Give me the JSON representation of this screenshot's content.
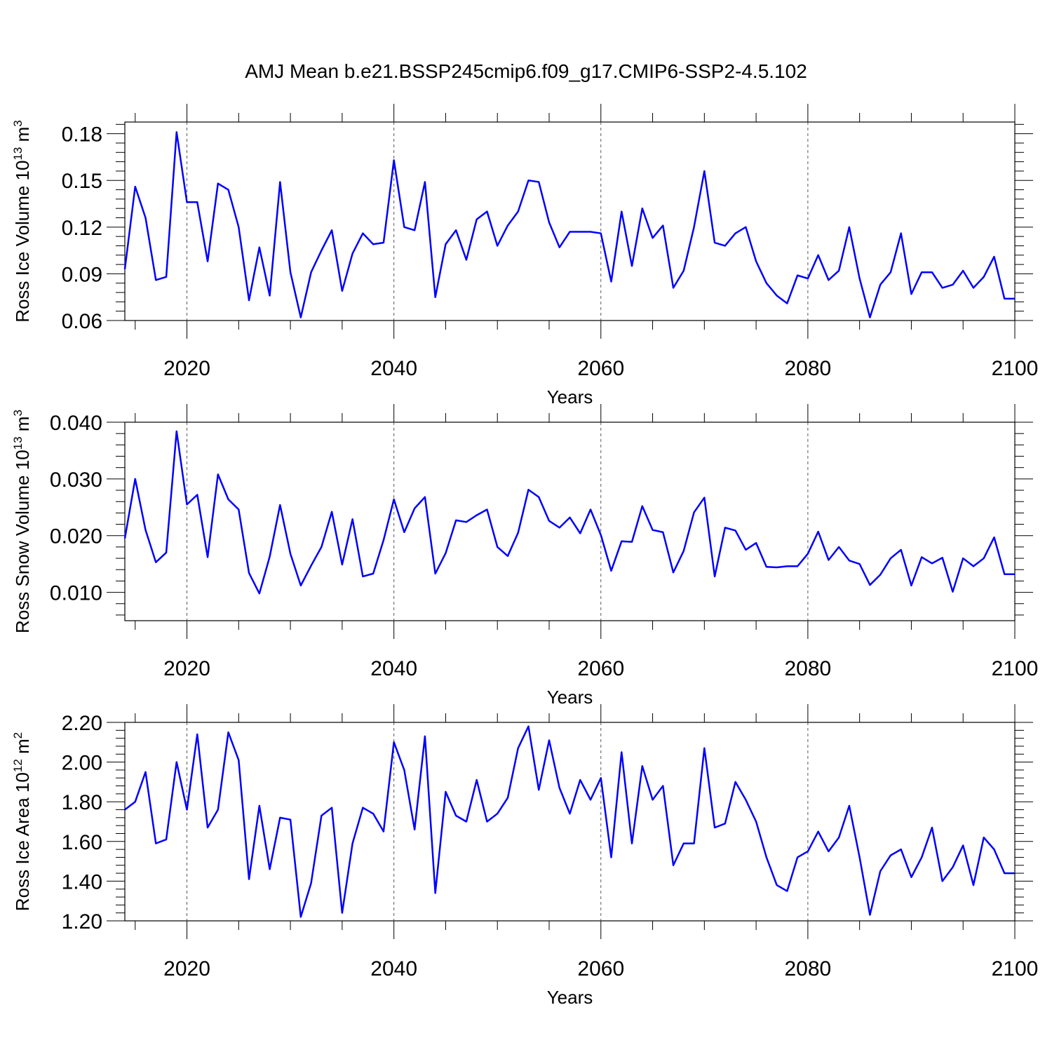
{
  "title": "AMJ Mean b.e21.BSSP245cmip6.f09_g17.CMIP6-SSP2-4.5.102",
  "chart_data": [
    {
      "type": "line",
      "ylabel": "Ross Ice Volume 10",
      "ylabel_exp": "13",
      "ylabel_unit": " m",
      "ylabel_unit_exp": "3",
      "xlabel": "Years",
      "xlim": [
        2014,
        2100
      ],
      "ylim": [
        0.06,
        0.1875
      ],
      "yticks": [
        0.06,
        0.09,
        0.12,
        0.15,
        0.18
      ],
      "ytick_labels": [
        "0.06",
        "0.09",
        "0.12",
        "0.15",
        "0.18"
      ],
      "xticks": [
        2020,
        2040,
        2060,
        2080,
        2100
      ],
      "xtick_labels": [
        "2020",
        "2040",
        "2060",
        "2080",
        "2100"
      ],
      "grid_x": [
        2020,
        2040,
        2060,
        2080
      ],
      "color": "#0000ff",
      "x": [
        2014,
        2015,
        2016,
        2017,
        2018,
        2019,
        2020,
        2021,
        2022,
        2023,
        2024,
        2025,
        2026,
        2027,
        2028,
        2029,
        2030,
        2031,
        2032,
        2033,
        2034,
        2035,
        2036,
        2037,
        2038,
        2039,
        2040,
        2041,
        2042,
        2043,
        2044,
        2045,
        2046,
        2047,
        2048,
        2049,
        2050,
        2051,
        2052,
        2053,
        2054,
        2055,
        2056,
        2057,
        2058,
        2059,
        2060,
        2061,
        2062,
        2063,
        2064,
        2065,
        2066,
        2067,
        2068,
        2069,
        2070,
        2071,
        2072,
        2073,
        2074,
        2075,
        2076,
        2077,
        2078,
        2079,
        2080,
        2081,
        2082,
        2083,
        2084,
        2085,
        2086,
        2087,
        2088,
        2089,
        2090,
        2091,
        2092,
        2093,
        2094,
        2095,
        2096,
        2097,
        2098,
        2099,
        2100
      ],
      "y": [
        0.093,
        0.146,
        0.126,
        0.086,
        0.088,
        0.181,
        0.136,
        0.136,
        0.098,
        0.148,
        0.144,
        0.12,
        0.073,
        0.107,
        0.076,
        0.149,
        0.091,
        0.062,
        0.091,
        0.105,
        0.118,
        0.079,
        0.103,
        0.116,
        0.109,
        0.11,
        0.163,
        0.12,
        0.118,
        0.149,
        0.075,
        0.109,
        0.118,
        0.099,
        0.125,
        0.13,
        0.108,
        0.121,
        0.13,
        0.15,
        0.149,
        0.123,
        0.107,
        0.117,
        0.117,
        0.117,
        0.116,
        0.085,
        0.13,
        0.095,
        0.132,
        0.113,
        0.121,
        0.081,
        0.092,
        0.12,
        0.156,
        0.11,
        0.108,
        0.116,
        0.12,
        0.098,
        0.084,
        0.076,
        0.071,
        0.089,
        0.087,
        0.102,
        0.086,
        0.092,
        0.12,
        0.087,
        0.062,
        0.083,
        0.091,
        0.116,
        0.077,
        0.091,
        0.091,
        0.081,
        0.083,
        0.092,
        0.081,
        0.088,
        0.101,
        0.074,
        0.074
      ]
    },
    {
      "type": "line",
      "ylabel": "Ross Snow Volume 10",
      "ylabel_exp": "13",
      "ylabel_unit": " m",
      "ylabel_unit_exp": "3",
      "xlabel": "Years",
      "xlim": [
        2014,
        2100
      ],
      "ylim": [
        0.005,
        0.04
      ],
      "yticks": [
        0.01,
        0.02,
        0.03,
        0.04
      ],
      "ytick_labels": [
        "0.010",
        "0.020",
        "0.030",
        "0.040"
      ],
      "xticks": [
        2020,
        2040,
        2060,
        2080,
        2100
      ],
      "xtick_labels": [
        "2020",
        "2040",
        "2060",
        "2080",
        "2100"
      ],
      "grid_x": [
        2020,
        2040,
        2060,
        2080
      ],
      "color": "#0000ff",
      "x": [
        2014,
        2015,
        2016,
        2017,
        2018,
        2019,
        2020,
        2021,
        2022,
        2023,
        2024,
        2025,
        2026,
        2027,
        2028,
        2029,
        2030,
        2031,
        2032,
        2033,
        2034,
        2035,
        2036,
        2037,
        2038,
        2039,
        2040,
        2041,
        2042,
        2043,
        2044,
        2045,
        2046,
        2047,
        2048,
        2049,
        2050,
        2051,
        2052,
        2053,
        2054,
        2055,
        2056,
        2057,
        2058,
        2059,
        2060,
        2061,
        2062,
        2063,
        2064,
        2065,
        2066,
        2067,
        2068,
        2069,
        2070,
        2071,
        2072,
        2073,
        2074,
        2075,
        2076,
        2077,
        2078,
        2079,
        2080,
        2081,
        2082,
        2083,
        2084,
        2085,
        2086,
        2087,
        2088,
        2089,
        2090,
        2091,
        2092,
        2093,
        2094,
        2095,
        2096,
        2097,
        2098,
        2099,
        2100
      ],
      "y": [
        0.0195,
        0.03,
        0.021,
        0.0153,
        0.017,
        0.0384,
        0.0255,
        0.0272,
        0.0162,
        0.0308,
        0.0264,
        0.0246,
        0.0134,
        0.0098,
        0.0163,
        0.0254,
        0.0168,
        0.0112,
        0.0147,
        0.018,
        0.0242,
        0.0149,
        0.0229,
        0.0128,
        0.0133,
        0.0192,
        0.0264,
        0.0206,
        0.0248,
        0.0268,
        0.0133,
        0.0169,
        0.0227,
        0.0224,
        0.0236,
        0.0246,
        0.018,
        0.0164,
        0.0205,
        0.0281,
        0.0268,
        0.0226,
        0.0214,
        0.0232,
        0.0204,
        0.0246,
        0.0201,
        0.0138,
        0.019,
        0.0189,
        0.0252,
        0.021,
        0.0206,
        0.0135,
        0.0173,
        0.0241,
        0.0267,
        0.0128,
        0.0214,
        0.0209,
        0.0175,
        0.0187,
        0.0145,
        0.0144,
        0.0146,
        0.0146,
        0.0168,
        0.0207,
        0.0157,
        0.018,
        0.0156,
        0.015,
        0.0113,
        0.0131,
        0.016,
        0.0175,
        0.0112,
        0.0162,
        0.0151,
        0.0161,
        0.0101,
        0.016,
        0.0146,
        0.016,
        0.0197,
        0.0132,
        0.0132
      ]
    },
    {
      "type": "line",
      "ylabel": "Ross Ice Area 10",
      "ylabel_exp": "12",
      "ylabel_unit": " m",
      "ylabel_unit_exp": "2",
      "xlabel": "Years",
      "xlim": [
        2014,
        2100
      ],
      "ylim": [
        1.2,
        2.2
      ],
      "yticks": [
        1.2,
        1.4,
        1.6,
        1.8,
        2.0,
        2.2
      ],
      "ytick_labels": [
        "1.20",
        "1.40",
        "1.60",
        "1.80",
        "2.00",
        "2.20"
      ],
      "xticks": [
        2020,
        2040,
        2060,
        2080,
        2100
      ],
      "xtick_labels": [
        "2020",
        "2040",
        "2060",
        "2080",
        "2100"
      ],
      "grid_x": [
        2020,
        2040,
        2060,
        2080
      ],
      "color": "#0000ff",
      "x": [
        2014,
        2015,
        2016,
        2017,
        2018,
        2019,
        2020,
        2021,
        2022,
        2023,
        2024,
        2025,
        2026,
        2027,
        2028,
        2029,
        2030,
        2031,
        2032,
        2033,
        2034,
        2035,
        2036,
        2037,
        2038,
        2039,
        2040,
        2041,
        2042,
        2043,
        2044,
        2045,
        2046,
        2047,
        2048,
        2049,
        2050,
        2051,
        2052,
        2053,
        2054,
        2055,
        2056,
        2057,
        2058,
        2059,
        2060,
        2061,
        2062,
        2063,
        2064,
        2065,
        2066,
        2067,
        2068,
        2069,
        2070,
        2071,
        2072,
        2073,
        2074,
        2075,
        2076,
        2077,
        2078,
        2079,
        2080,
        2081,
        2082,
        2083,
        2084,
        2085,
        2086,
        2087,
        2088,
        2089,
        2090,
        2091,
        2092,
        2093,
        2094,
        2095,
        2096,
        2097,
        2098,
        2099,
        2100
      ],
      "y": [
        1.76,
        1.8,
        1.95,
        1.59,
        1.61,
        2.0,
        1.76,
        2.14,
        1.67,
        1.76,
        2.15,
        2.01,
        1.41,
        1.78,
        1.46,
        1.72,
        1.71,
        1.22,
        1.39,
        1.73,
        1.77,
        1.24,
        1.59,
        1.77,
        1.74,
        1.65,
        2.1,
        1.96,
        1.66,
        2.13,
        1.34,
        1.85,
        1.73,
        1.7,
        1.91,
        1.7,
        1.74,
        1.82,
        2.07,
        2.18,
        1.86,
        2.11,
        1.87,
        1.74,
        1.91,
        1.81,
        1.92,
        1.52,
        2.05,
        1.59,
        1.98,
        1.81,
        1.88,
        1.48,
        1.59,
        1.59,
        2.07,
        1.67,
        1.69,
        1.9,
        1.81,
        1.7,
        1.52,
        1.38,
        1.35,
        1.52,
        1.55,
        1.65,
        1.55,
        1.62,
        1.78,
        1.52,
        1.23,
        1.45,
        1.53,
        1.56,
        1.42,
        1.52,
        1.67,
        1.4,
        1.47,
        1.58,
        1.38,
        1.62,
        1.56,
        1.44,
        1.44
      ]
    }
  ]
}
